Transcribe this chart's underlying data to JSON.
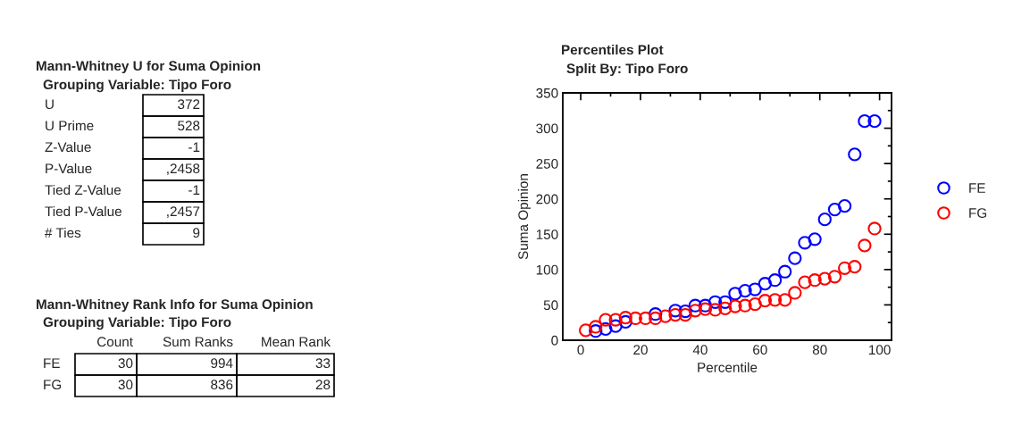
{
  "chart_data": [
    {
      "type": "other",
      "title": "Mann-Whitney U for Suma Opinion",
      "subtitle": "Grouping Variable: Tipo Foro",
      "y_categories": [
        "U",
        "U Prime",
        "Z-Value",
        "P-Value",
        "Tied Z-Value",
        "Tied P-Value",
        "# Ties"
      ],
      "cell_labels": [
        [
          "372"
        ],
        [
          "528"
        ],
        [
          "-1"
        ],
        [
          ",2458"
        ],
        [
          "-1"
        ],
        [
          ",2457"
        ],
        [
          "9"
        ]
      ]
    },
    {
      "type": "other",
      "title": "Mann-Whitney Rank Info for Suma Opinion",
      "subtitle": "Grouping Variable: Tipo Foro",
      "categories": [
        "Count",
        "Sum Ranks",
        "Mean Rank"
      ],
      "y_categories": [
        "FE",
        "FG"
      ],
      "cell_labels": [
        [
          "30",
          "994",
          "33"
        ],
        [
          "30",
          "836",
          "28"
        ]
      ]
    },
    {
      "type": "scatter",
      "title": "Percentiles Plot",
      "subtitle": "Split By: Tipo Foro",
      "xlabel": "Percentile",
      "ylabel": "Suma Opinion",
      "x": [
        1.67,
        5,
        8.33,
        11.67,
        15,
        18.33,
        21.67,
        25,
        28.33,
        31.67,
        35,
        38.33,
        41.67,
        45,
        48.33,
        51.67,
        55,
        58.33,
        61.67,
        65,
        68.33,
        71.67,
        75,
        78.33,
        81.67,
        85,
        88.33,
        91.67,
        95,
        98.33
      ],
      "series": [
        {
          "name": "FE",
          "color": "#0000ff",
          "values": [
            null,
            13,
            16,
            20,
            26,
            null,
            null,
            37,
            null,
            42,
            41,
            49,
            49,
            54,
            54,
            66,
            70,
            72,
            80,
            85,
            97,
            116,
            138,
            143,
            171,
            185,
            190,
            263,
            310,
            310
          ]
        },
        {
          "name": "FG",
          "color": "#ff0000",
          "values": [
            14,
            19,
            29,
            29,
            32,
            31,
            31,
            31,
            34,
            36,
            36,
            42,
            44,
            43,
            45,
            48,
            49,
            51,
            56,
            57,
            57,
            67,
            82,
            85,
            87,
            90,
            102,
            104,
            134,
            158
          ]
        }
      ],
      "xlim": [
        -6,
        104
      ],
      "ylim": [
        0,
        350
      ],
      "xticks": [
        0,
        20,
        40,
        60,
        80,
        100
      ],
      "yticks": [
        0,
        50,
        100,
        150,
        200,
        250,
        300,
        350
      ],
      "marker": "circle",
      "legend": "right",
      "grid": false
    }
  ]
}
